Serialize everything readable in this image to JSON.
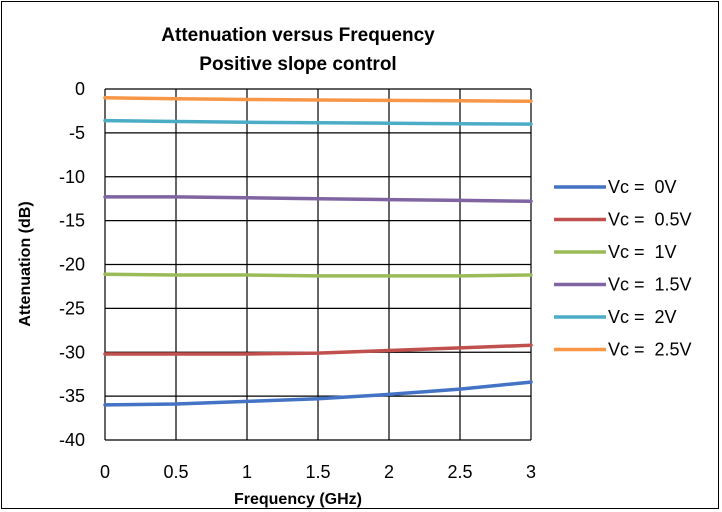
{
  "chart_data": {
    "type": "line",
    "title": "Attenuation versus Frequency",
    "subtitle": "Positive slope control",
    "xlabel": "Frequency (GHz)",
    "ylabel": "Attenuation (dB)",
    "xlim": [
      0,
      3
    ],
    "ylim": [
      -40,
      0
    ],
    "xticks": [
      "0",
      "0.5",
      "1",
      "1.5",
      "2",
      "2.5",
      "3"
    ],
    "yticks": [
      "0",
      "-5",
      "-10",
      "-15",
      "-20",
      "-25",
      "-30",
      "-35",
      "-40"
    ],
    "grid": true,
    "legend_position": "right",
    "x": [
      0,
      0.5,
      1,
      1.5,
      2,
      2.5,
      3
    ],
    "series": [
      {
        "name": "Vc =  0V",
        "color": "#4472C4",
        "values": [
          -36.0,
          -35.9,
          -35.6,
          -35.3,
          -34.8,
          -34.2,
          -33.4
        ]
      },
      {
        "name": "Vc =  0.5V",
        "color": "#C0504D",
        "values": [
          -30.2,
          -30.2,
          -30.2,
          -30.1,
          -29.8,
          -29.5,
          -29.2
        ]
      },
      {
        "name": "Vc =  1V",
        "color": "#9BBB59",
        "values": [
          -21.1,
          -21.2,
          -21.2,
          -21.3,
          -21.3,
          -21.3,
          -21.2
        ]
      },
      {
        "name": "Vc =  1.5V",
        "color": "#8064A2",
        "values": [
          -12.3,
          -12.3,
          -12.4,
          -12.5,
          -12.6,
          -12.7,
          -12.8
        ]
      },
      {
        "name": "Vc =  2V",
        "color": "#4BACC6",
        "values": [
          -3.6,
          -3.7,
          -3.8,
          -3.85,
          -3.9,
          -3.95,
          -4.0
        ]
      },
      {
        "name": "Vc =  2.5V",
        "color": "#F79646",
        "values": [
          -1.0,
          -1.1,
          -1.2,
          -1.25,
          -1.3,
          -1.35,
          -1.4
        ]
      }
    ]
  }
}
